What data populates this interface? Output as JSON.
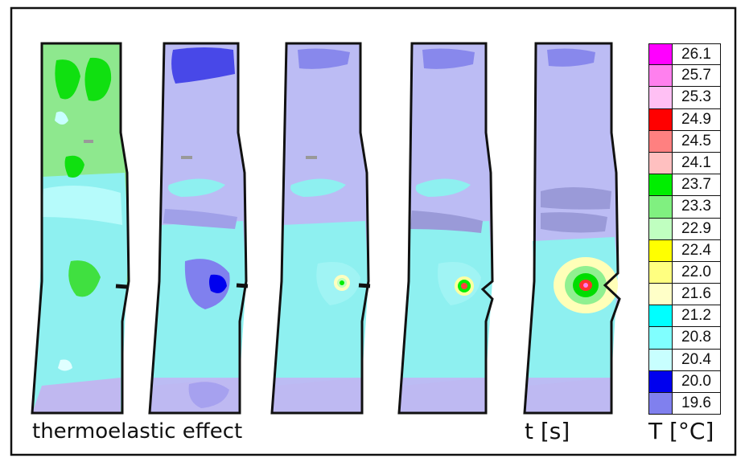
{
  "captions": {
    "effect": "thermoelastic effect",
    "time": "t [s]",
    "temperature": "T [°C]"
  },
  "legend": [
    {
      "value": "26.1",
      "color": "#ff00ff"
    },
    {
      "value": "25.7",
      "color": "#ff80ee"
    },
    {
      "value": "25.3",
      "color": "#ffc0f4"
    },
    {
      "value": "24.9",
      "color": "#ff0000"
    },
    {
      "value": "24.5",
      "color": "#ff8080"
    },
    {
      "value": "24.1",
      "color": "#ffc0c0"
    },
    {
      "value": "23.7",
      "color": "#00ee00"
    },
    {
      "value": "23.3",
      "color": "#80f080"
    },
    {
      "value": "22.9",
      "color": "#c0ffc0"
    },
    {
      "value": "22.4",
      "color": "#ffff00"
    },
    {
      "value": "22.0",
      "color": "#ffff80"
    },
    {
      "value": "21.6",
      "color": "#ffffc8"
    },
    {
      "value": "21.2",
      "color": "#00ffff"
    },
    {
      "value": "20.8",
      "color": "#80ffff"
    },
    {
      "value": "20.4",
      "color": "#c8ffff"
    },
    {
      "value": "20.0",
      "color": "#0000ee"
    },
    {
      "value": "19.6",
      "color": "#8080ee"
    }
  ]
}
